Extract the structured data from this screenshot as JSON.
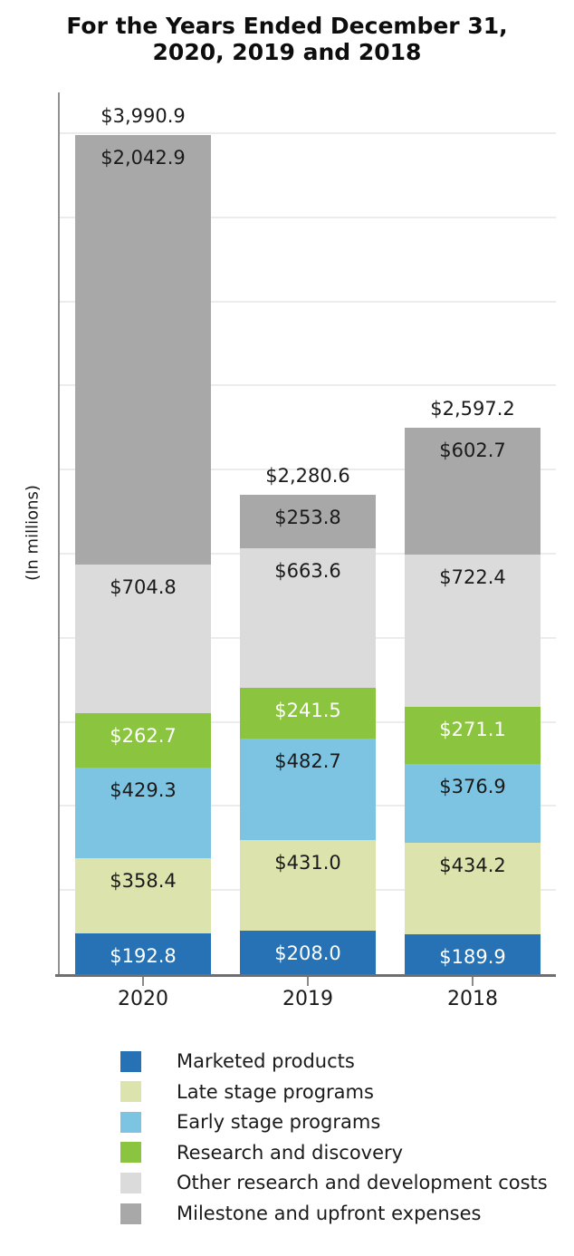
{
  "header": {
    "title_line1": "For the Years Ended December 31,",
    "title_line2": "2020, 2019 and 2018"
  },
  "chart_data": {
    "type": "bar",
    "stacked": true,
    "title": "For the Years Ended December 31, 2020, 2019 and 2018",
    "ylabel": "(In millions)",
    "xlabel": "",
    "categories": [
      "2020",
      "2019",
      "2018"
    ],
    "series": [
      {
        "name": "Marketed products",
        "color": "#2772b4",
        "label_color": "#ffffff",
        "values": [
          192.8,
          208.0,
          189.9
        ]
      },
      {
        "name": "Late stage programs",
        "color": "#dce3ad",
        "label_color": "#1a1a1a",
        "values": [
          358.4,
          431.0,
          434.2
        ]
      },
      {
        "name": "Early stage programs",
        "color": "#7cc4e2",
        "label_color": "#1a1a1a",
        "values": [
          429.3,
          482.7,
          376.9
        ]
      },
      {
        "name": "Research and discovery",
        "color": "#8bc53f",
        "label_color": "#ffffff",
        "values": [
          262.7,
          241.5,
          271.1
        ]
      },
      {
        "name": "Other research and development costs",
        "color": "#dbdbdb",
        "label_color": "#1a1a1a",
        "values": [
          704.8,
          663.6,
          722.4
        ]
      },
      {
        "name": "Milestone and upfront expenses",
        "color": "#a8a8a8",
        "label_color": "#1a1a1a",
        "values": [
          2042.9,
          253.8,
          602.7
        ]
      }
    ],
    "totals": [
      3990.9,
      2280.6,
      2597.2
    ],
    "value_prefix": "$",
    "value_decimals": 1,
    "ylim": [
      0,
      4200
    ],
    "gridline_step": 400,
    "grid": true,
    "y_tick_labels_shown": false,
    "legend_position": "bottom",
    "colors": {
      "gridline": "#ececec",
      "y_axis": "#929292",
      "x_axis": "#6f6f6f",
      "text": "#1a1a1a"
    }
  }
}
